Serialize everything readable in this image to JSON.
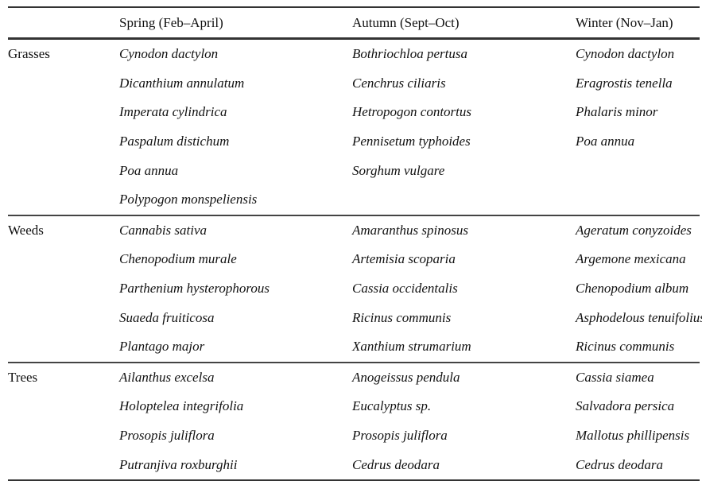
{
  "table": {
    "headers": [
      "",
      "Spring (Feb–April)",
      "Autumn (Sept–Oct)",
      "Winter (Nov–Jan)"
    ],
    "groups": [
      {
        "category": "Grasses",
        "rows": [
          [
            "Cynodon dactylon",
            "Bothriochloa pertusa",
            "Cynodon dactylon"
          ],
          [
            "Dicanthium annulatum",
            "Cenchrus ciliaris",
            "Eragrostis tenella"
          ],
          [
            "Imperata cylindrica",
            "Hetropogon contortus",
            "Phalaris minor"
          ],
          [
            "Paspalum distichum",
            "Pennisetum typhoides",
            "Poa annua"
          ],
          [
            "Poa annua",
            "Sorghum vulgare",
            ""
          ],
          [
            "Polypogon monspeliensis",
            "",
            ""
          ]
        ]
      },
      {
        "category": "Weeds",
        "rows": [
          [
            "Cannabis sativa",
            "Amaranthus spinosus",
            "Ageratum conyzoides"
          ],
          [
            "Chenopodium murale",
            "Artemisia scoparia",
            "Argemone mexicana"
          ],
          [
            "Parthenium hysterophorous",
            "Cassia occidentalis",
            "Chenopodium album"
          ],
          [
            "Suaeda fruiticosa",
            "Ricinus communis",
            "Asphodelous tenuifolius"
          ],
          [
            "Plantago major",
            "Xanthium strumarium",
            "Ricinus communis"
          ]
        ]
      },
      {
        "category": "Trees",
        "rows": [
          [
            "Ailanthus excelsa",
            "Anogeissus pendula",
            "Cassia siamea"
          ],
          [
            "Holoptelea integrifolia",
            "Eucalyptus sp.",
            "Salvadora persica"
          ],
          [
            "Prosopis juliflora",
            "Prosopis juliflora",
            "Mallotus phillipensis"
          ],
          [
            "Putranjiva roxburghii",
            "Cedrus deodara",
            "Cedrus deodara"
          ]
        ]
      }
    ]
  }
}
